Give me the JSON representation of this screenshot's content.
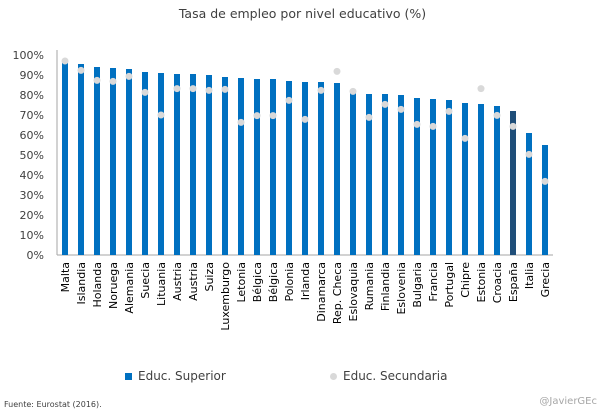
{
  "chart_data": {
    "type": "bar",
    "title": "Tasa de empleo por nivel educativo (%)",
    "categories": [
      "Malta",
      "Islandia",
      "Holanda",
      "Noruega",
      "Alemania",
      "Suecia",
      "Lituania",
      "Austria",
      "Austria",
      "Suiza",
      "Luxemburgo",
      "Letonia",
      "Bélgica",
      "Bélgica",
      "Polonia",
      "Irlanda",
      "Dinamarca",
      "Rep. Checa",
      "Eslovaquia",
      "Rumania",
      "Finlandia",
      "Eslovenia",
      "Bulgaria",
      "Francia",
      "Portugal",
      "Chipre",
      "Estonia",
      "Croacia",
      "España",
      "Italia",
      "Grecia"
    ],
    "series": [
      {
        "name": "Educ. Superior",
        "type": "bar",
        "color": "#0070c0",
        "highlight": {
          "category": "España",
          "color": "#1f4e79"
        },
        "values": [
          97.5,
          95.5,
          94,
          93.5,
          93,
          91.5,
          91,
          90.5,
          90.5,
          90,
          89,
          88.5,
          88,
          88,
          87,
          86.5,
          86.5,
          86,
          82.5,
          80.5,
          80.5,
          80,
          78.5,
          78,
          77.5,
          76,
          75.5,
          74.5,
          72,
          61,
          55
        ]
      },
      {
        "name": "Educ. Secundaria",
        "type": "scatter",
        "color": "#d9d9d9",
        "values": [
          97,
          92.3,
          87.3,
          86.8,
          89.3,
          81.3,
          70,
          83.2,
          83.2,
          82.3,
          82.8,
          66.3,
          69.7,
          69.7,
          77.3,
          67.8,
          82.3,
          91.8,
          81.8,
          68.8,
          75.3,
          72.8,
          65.3,
          64.3,
          71.8,
          58.3,
          83.2,
          69.8,
          64.3,
          50.3,
          36.8
        ]
      }
    ],
    "ylim": [
      0,
      100
    ],
    "yticks": [
      "0%",
      "10%",
      "20%",
      "30%",
      "40%",
      "50%",
      "60%",
      "70%",
      "80%",
      "90%",
      "100%"
    ],
    "grid": false,
    "legend": "bottom"
  },
  "source": "Fuente:  Eurostat (2016).",
  "watermark": "@JavierGEc"
}
